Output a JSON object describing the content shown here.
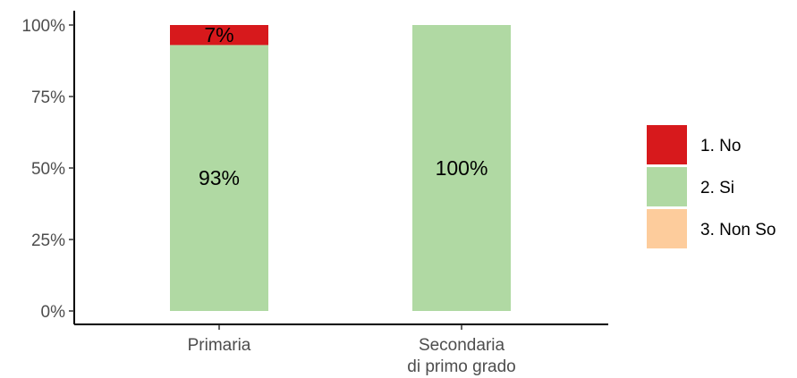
{
  "chart_data": {
    "type": "bar",
    "stacked": true,
    "categories": [
      "Primaria",
      "Secondaria\ndi primo grado"
    ],
    "series": [
      {
        "name": "1. No",
        "color": "#d7191c",
        "values": [
          7,
          0
        ]
      },
      {
        "name": "2. Si",
        "color": "#b0d9a3",
        "values": [
          93,
          100
        ]
      },
      {
        "name": "3. Non So",
        "color": "#fdcc9c",
        "values": [
          0,
          0
        ]
      }
    ],
    "y_ticks": [
      "0%",
      "25%",
      "50%",
      "75%",
      "100%"
    ],
    "ylim": [
      0,
      100
    ],
    "bar_labels": [
      [
        "7%",
        "93%"
      ],
      [
        "100%"
      ]
    ],
    "legend_placement": "right",
    "grid": false
  }
}
